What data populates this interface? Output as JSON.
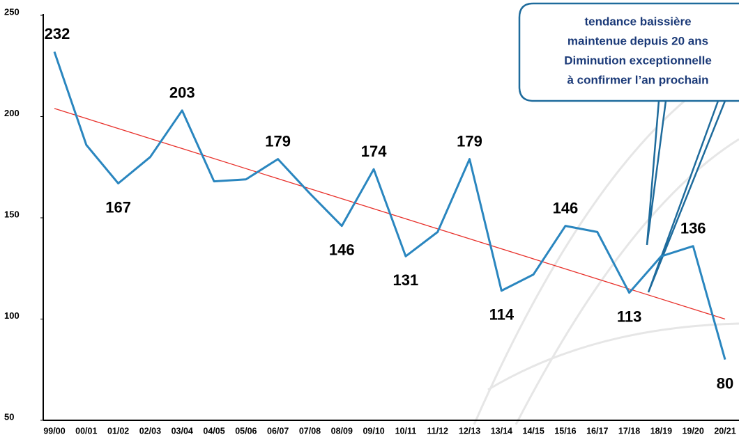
{
  "chart_data": {
    "type": "line",
    "categories": [
      "99/00",
      "00/01",
      "01/02",
      "02/03",
      "03/04",
      "04/05",
      "05/06",
      "06/07",
      "07/08",
      "08/09",
      "09/10",
      "10/11",
      "11/12",
      "12/13",
      "13/14",
      "14/15",
      "15/16",
      "16/17",
      "17/18",
      "18/19",
      "19/20",
      "20/21"
    ],
    "series": [
      {
        "color": "#2a86bf",
        "values": [
          232,
          186,
          167,
          180,
          203,
          168,
          169,
          179,
          162,
          146,
          174,
          131,
          143,
          179,
          114,
          122,
          146,
          143,
          113,
          131,
          136,
          80
        ],
        "value_labels": [
          "232",
          null,
          "167",
          null,
          "203",
          null,
          null,
          "179",
          null,
          "146",
          "174",
          "131",
          null,
          "179",
          "114",
          null,
          "146",
          null,
          "113",
          null,
          "136",
          "80"
        ]
      }
    ],
    "trendline": {
      "color": "#e8302a",
      "values": [
        204,
        100
      ]
    },
    "ylim": [
      50,
      250
    ],
    "yticks": [
      50,
      100,
      150,
      200,
      250
    ],
    "annotation": [
      "tendance baissière",
      "maintenue depuis 20 ans",
      "Diminution exceptionnelle",
      "à confirmer l’an prochain"
    ]
  }
}
